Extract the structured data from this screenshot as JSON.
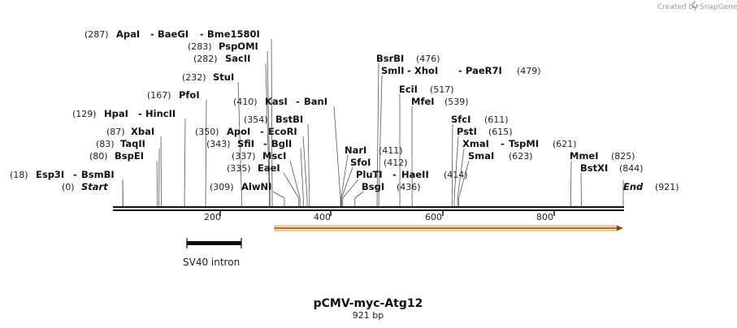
{
  "credit": {
    "prefix": "Created by",
    "brand": "SnapGene",
    "logo_icon": "snapgene-logo-icon"
  },
  "title": "pCMV-myc-Atg12",
  "length_label": "921 bp",
  "sequence": {
    "length": 921,
    "start_label": "Start",
    "end_label": "End",
    "start_pos": "(0)",
    "end_pos": "(921)"
  },
  "ruler": {
    "ticks": [
      "200",
      "400",
      "600",
      "800"
    ]
  },
  "features": [
    {
      "label": "SV40 intron",
      "start": 135,
      "end": 232,
      "type": "intron"
    },
    {
      "label": "",
      "start": 292,
      "end": 921,
      "type": "orf",
      "color": "#f5a623"
    }
  ],
  "sites": [
    {
      "pos": "(287)",
      "pos_num": 287,
      "names": [
        "ApaI",
        "BaeGI",
        "Bme1580I"
      ]
    },
    {
      "pos": "(283)",
      "pos_num": 283,
      "names": [
        "PspOMI"
      ]
    },
    {
      "pos": "(282)",
      "pos_num": 282,
      "names": [
        "SacII"
      ]
    },
    {
      "pos": "(232)",
      "pos_num": 232,
      "names": [
        "StuI"
      ]
    },
    {
      "pos": "(167)",
      "pos_num": 167,
      "names": [
        "PfoI"
      ]
    },
    {
      "pos": "(129)",
      "pos_num": 129,
      "names": [
        "HpaI",
        "HincII"
      ]
    },
    {
      "pos": "(87)",
      "pos_num": 87,
      "names": [
        "XbaI"
      ]
    },
    {
      "pos": "(83)",
      "pos_num": 83,
      "names": [
        "TaqII"
      ]
    },
    {
      "pos": "(80)",
      "pos_num": 80,
      "names": [
        "BspEI"
      ]
    },
    {
      "pos": "(18)",
      "pos_num": 18,
      "names": [
        "Esp3I",
        "BsmBI"
      ]
    },
    {
      "pos": "(410)",
      "pos_num": 410,
      "names": [
        "KasI",
        "BanI"
      ]
    },
    {
      "pos": "(354)",
      "pos_num": 354,
      "names": [
        "BstBI"
      ]
    },
    {
      "pos": "(350)",
      "pos_num": 350,
      "names": [
        "ApoI",
        "EcoRI"
      ]
    },
    {
      "pos": "(343)",
      "pos_num": 343,
      "names": [
        "SfiI",
        "BglI"
      ]
    },
    {
      "pos": "(337)",
      "pos_num": 337,
      "names": [
        "MscI"
      ]
    },
    {
      "pos": "(335)",
      "pos_num": 335,
      "names": [
        "EaeI"
      ]
    },
    {
      "pos": "(309)",
      "pos_num": 309,
      "names": [
        "AlwNI"
      ]
    },
    {
      "pos": "(476)",
      "pos_num": 476,
      "names": [
        "BsrBI"
      ]
    },
    {
      "pos": "(479)",
      "pos_num": 479,
      "names": [
        "SmlI",
        "XhoI",
        "PaeR7I"
      ]
    },
    {
      "pos": "(517)",
      "pos_num": 517,
      "names": [
        "EciI"
      ]
    },
    {
      "pos": "(539)",
      "pos_num": 539,
      "names": [
        "MfeI"
      ]
    },
    {
      "pos": "(411)",
      "pos_num": 411,
      "names": [
        "NarI"
      ]
    },
    {
      "pos": "(412)",
      "pos_num": 412,
      "names": [
        "SfoI"
      ]
    },
    {
      "pos": "(414)",
      "pos_num": 414,
      "names": [
        "PluTI",
        "HaeII"
      ]
    },
    {
      "pos": "(436)",
      "pos_num": 436,
      "names": [
        "BsgI"
      ]
    },
    {
      "pos": "(611)",
      "pos_num": 611,
      "names": [
        "SfcI"
      ]
    },
    {
      "pos": "(615)",
      "pos_num": 615,
      "names": [
        "PstI"
      ]
    },
    {
      "pos": "(621)",
      "pos_num": 621,
      "names": [
        "XmaI",
        "TspMI"
      ]
    },
    {
      "pos": "(623)",
      "pos_num": 623,
      "names": [
        "SmaI"
      ]
    },
    {
      "pos": "(825)",
      "pos_num": 825,
      "names": [
        "MmeI"
      ]
    },
    {
      "pos": "(844)",
      "pos_num": 844,
      "names": [
        "BstXI"
      ]
    }
  ]
}
